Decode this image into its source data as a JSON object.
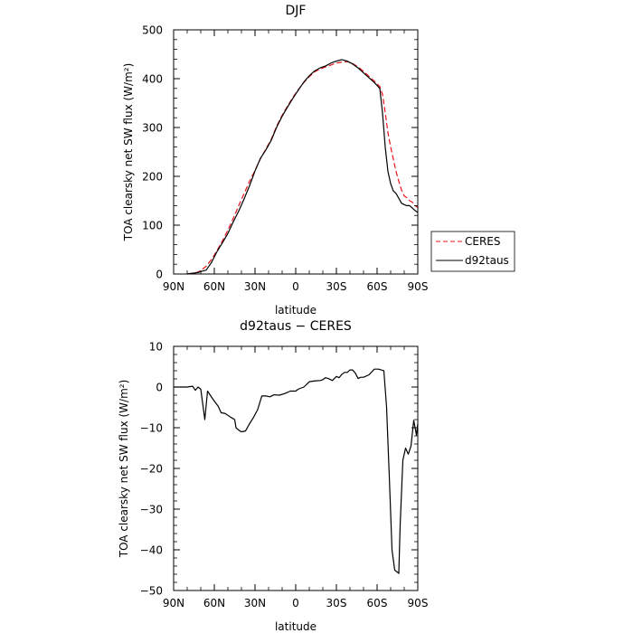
{
  "chart_data": [
    {
      "type": "line",
      "title": "DJF",
      "xlabel": "latitude",
      "ylabel": "TOA clearsky net SW flux (W/m²)",
      "xlim": [
        -90,
        90
      ],
      "ylim": [
        0,
        500
      ],
      "xtick_values": [
        -90,
        -60,
        -30,
        0,
        30,
        60,
        90
      ],
      "xtick_labels": [
        "90N",
        "60N",
        "30N",
        "0",
        "30S",
        "60S",
        "90S"
      ],
      "yticks": [
        0,
        100,
        200,
        300,
        400,
        500
      ],
      "grid": false,
      "legend": {
        "placement": "outside-right",
        "entries": [
          "CERES",
          "d92taus"
        ]
      },
      "series": [
        {
          "name": "CERES",
          "color": "#e8141b",
          "dash": "dashed",
          "x": [
            -80,
            -75,
            -72,
            -70,
            -66,
            -62,
            -58,
            -54,
            -50,
            -46,
            -42,
            -38,
            -34,
            -30,
            -26,
            -22,
            -18,
            -14,
            -10,
            -6,
            -2,
            2,
            6,
            10,
            14,
            18,
            22,
            26,
            30,
            34,
            38,
            42,
            46,
            50,
            54,
            58,
            62,
            64,
            66,
            68,
            70,
            72,
            74,
            76,
            78,
            80,
            82,
            84,
            86,
            88,
            90
          ],
          "values": [
            0,
            2,
            4,
            7,
            16,
            30,
            48,
            68,
            90,
            114,
            140,
            165,
            190,
            212,
            236,
            256,
            276,
            303,
            325,
            344,
            362,
            378,
            392,
            404,
            414,
            420,
            424,
            428,
            432,
            434,
            435,
            431,
            424,
            415,
            405,
            395,
            384,
            368,
            330,
            290,
            260,
            235,
            210,
            190,
            172,
            160,
            156,
            150,
            147,
            140,
            136
          ]
        },
        {
          "name": "d92taus",
          "color": "#000000",
          "dash": "solid",
          "x": [
            -80,
            -75,
            -72,
            -70,
            -66,
            -62,
            -58,
            -54,
            -50,
            -46,
            -42,
            -38,
            -34,
            -30,
            -26,
            -22,
            -18,
            -14,
            -10,
            -6,
            -2,
            2,
            6,
            10,
            14,
            18,
            22,
            26,
            30,
            34,
            38,
            42,
            46,
            50,
            54,
            58,
            62,
            64,
            66,
            68,
            70,
            72,
            74,
            76,
            78,
            80,
            82,
            84,
            86,
            88,
            90
          ],
          "values": [
            0,
            2,
            3,
            5,
            8,
            24,
            46,
            64,
            83,
            107,
            129,
            154,
            181,
            211,
            237,
            254,
            274,
            301,
            323,
            342,
            360,
            377,
            393,
            406,
            416,
            422,
            426,
            432,
            436,
            439,
            436,
            430,
            422,
            412,
            402,
            392,
            380,
            330,
            260,
            210,
            185,
            170,
            165,
            155,
            145,
            142,
            140,
            140,
            135,
            130,
            126
          ]
        }
      ]
    },
    {
      "type": "line",
      "title": "d92taus − CERES",
      "xlabel": "latitude",
      "ylabel": "TOA clearsky net SW flux (W/m²)",
      "xlim": [
        -90,
        90
      ],
      "ylim": [
        -50,
        10
      ],
      "xtick_values": [
        -90,
        -60,
        -30,
        0,
        30,
        60,
        90
      ],
      "xtick_labels": [
        "90N",
        "60N",
        "30N",
        "0",
        "30S",
        "60S",
        "90S"
      ],
      "yticks": [
        -50,
        -40,
        -30,
        -20,
        -10,
        0,
        10
      ],
      "grid": false,
      "series": [
        {
          "color": "#000000",
          "dash": "solid",
          "x": [
            -90,
            -84,
            -80,
            -76,
            -74,
            -72,
            -70,
            -67,
            -65,
            -61,
            -57,
            -55,
            -52,
            -48,
            -45,
            -44,
            -42,
            -40,
            -37,
            -34,
            -31,
            -28,
            -25,
            -22,
            -19,
            -16,
            -12,
            -8,
            -4,
            0,
            2,
            6,
            10,
            14,
            18,
            20,
            22,
            24,
            27,
            30,
            32,
            34,
            36,
            38,
            40,
            42,
            44,
            46,
            48,
            50,
            54,
            58,
            61,
            63,
            65,
            67,
            69,
            71,
            73,
            75,
            76,
            77,
            79,
            81,
            83,
            85,
            87,
            89,
            90
          ],
          "values": [
            0,
            0,
            0,
            0.2,
            -0.8,
            0,
            -0.5,
            -8,
            -1,
            -3,
            -4.8,
            -6.3,
            -6.5,
            -7.4,
            -8,
            -10,
            -10.6,
            -11,
            -10.8,
            -9,
            -7.4,
            -5.5,
            -2.2,
            -2.2,
            -2.4,
            -1.9,
            -2,
            -1.6,
            -1,
            -1,
            -0.5,
            0,
            1.3,
            1.5,
            1.6,
            1.8,
            2.3,
            2.1,
            1.6,
            2.6,
            2.3,
            3.1,
            3.6,
            3.6,
            4.2,
            4.2,
            3.4,
            2.1,
            2.4,
            2.4,
            3.0,
            4.4,
            4.4,
            4.2,
            4.0,
            -5,
            -22,
            -40,
            -45,
            -45.5,
            -45.8,
            -34,
            -18,
            -15,
            -16.5,
            -14.5,
            -8.2,
            -11.8,
            -9
          ]
        }
      ]
    }
  ]
}
